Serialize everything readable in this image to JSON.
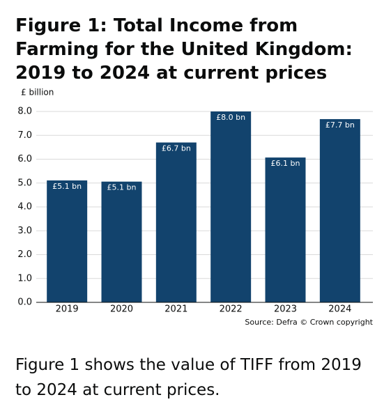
{
  "chart_data": {
    "type": "bar",
    "title": "Figure 1: Total Income from Farming for the United Kingdom: 2019 to 2024 at current prices",
    "y_label": "£ billion",
    "categories": [
      "2019",
      "2020",
      "2021",
      "2022",
      "2023",
      "2024"
    ],
    "values": [
      5.11,
      5.06,
      6.7,
      8.0,
      6.07,
      7.68
    ],
    "value_labels": [
      "£5.1 bn",
      "£5.1 bn",
      "£6.7 bn",
      "£8.0 bn",
      "£6.1 bn",
      "£7.7 bn"
    ],
    "color": "#12436d",
    "ylim": [
      0,
      8
    ],
    "yticks": [
      {
        "value": 0,
        "label": "0.0"
      },
      {
        "value": 1,
        "label": "1.0"
      },
      {
        "value": 2,
        "label": "2.0"
      },
      {
        "value": 3,
        "label": "3.0"
      },
      {
        "value": 4,
        "label": "4.0"
      },
      {
        "value": 5,
        "label": "5.0"
      },
      {
        "value": 6,
        "label": "6.0"
      },
      {
        "value": 7,
        "label": "7.0"
      },
      {
        "value": 8,
        "label": "8.0"
      }
    ],
    "grid": true,
    "source": "Source: Defra © Crown copyright"
  },
  "body_text": "Figure 1 shows the value of TIFF from 2019 to 2024 at current prices."
}
